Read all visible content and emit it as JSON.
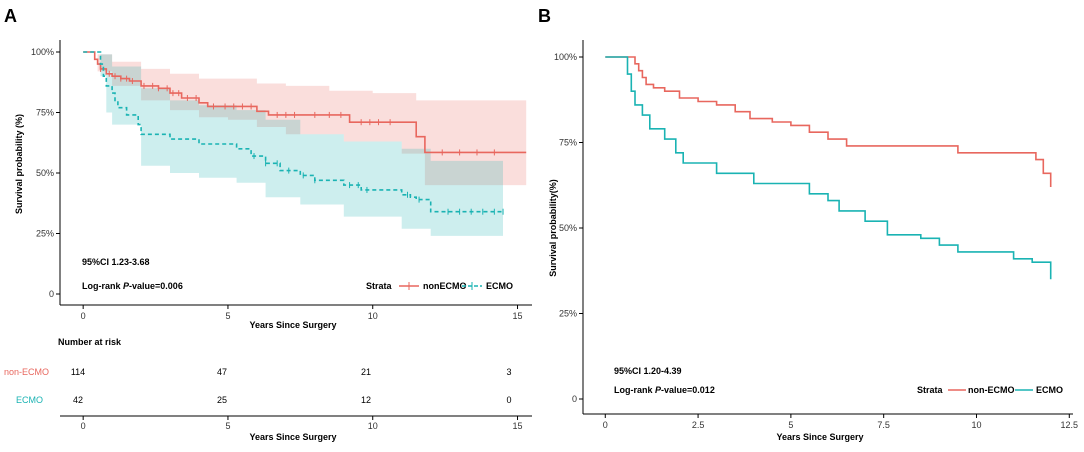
{
  "panels": {
    "a": {
      "letter": "A",
      "annotations": {
        "ci": "95%CI 1.23-3.68",
        "logrank_prefix": "Log-rank ",
        "logrank_p": "P",
        "logrank_suffix": "-value=0.006"
      },
      "legend": {
        "title": "Strata",
        "items": [
          "nonECMO",
          "ECMO"
        ]
      },
      "risk_table": {
        "title": "Number at risk",
        "xlabel": "Years Since Surgery",
        "times": [
          0,
          5,
          10,
          15
        ],
        "rows": [
          {
            "label": "non-ECMO",
            "counts": [
              "114",
              "47",
              "21",
              "3"
            ]
          },
          {
            "label": "ECMO",
            "counts": [
              "42",
              "25",
              "12",
              "0"
            ]
          }
        ]
      }
    },
    "b": {
      "letter": "B",
      "annotations": {
        "ci": "95%CI 1.20-4.39",
        "logrank_prefix": "Log-rank ",
        "logrank_p": "P",
        "logrank_suffix": "-value=0.012"
      },
      "legend": {
        "title": "Strata",
        "items": [
          "non-ECMO",
          "ECMO"
        ]
      }
    }
  },
  "colors": {
    "nonecmo": "#E8675E",
    "ecmo": "#1AB3B3"
  },
  "chart_data": [
    {
      "type": "line",
      "subtype": "kaplan-meier",
      "title": "",
      "xlabel": "Years Since Surgery",
      "ylabel": "Survival probability (%)",
      "xlim": [
        -0.8,
        15.5
      ],
      "ylim": [
        0,
        1
      ],
      "xticks": [
        0,
        5,
        10,
        15
      ],
      "yticks": [
        0,
        0.25,
        0.5,
        0.75,
        1.0
      ],
      "yticklabels": [
        "0",
        "25%",
        "50%",
        "75%",
        "100%"
      ],
      "series": [
        {
          "name": "nonECMO",
          "style": "solid",
          "steps": [
            [
              0,
              1.0
            ],
            [
              0.4,
              0.97
            ],
            [
              0.5,
              0.95
            ],
            [
              0.6,
              0.93
            ],
            [
              0.8,
              0.91
            ],
            [
              1.0,
              0.9
            ],
            [
              1.3,
              0.89
            ],
            [
              1.6,
              0.88
            ],
            [
              2.0,
              0.86
            ],
            [
              2.6,
              0.85
            ],
            [
              3.0,
              0.83
            ],
            [
              3.4,
              0.81
            ],
            [
              4.0,
              0.79
            ],
            [
              4.3,
              0.775
            ],
            [
              6.0,
              0.755
            ],
            [
              6.4,
              0.74
            ],
            [
              9.2,
              0.71
            ],
            [
              11.5,
              0.65
            ],
            [
              11.8,
              0.585
            ],
            [
              15.3,
              0.585
            ]
          ],
          "ci_upper": [
            [
              0,
              1.0
            ],
            [
              0.5,
              0.99
            ],
            [
              1.0,
              0.96
            ],
            [
              2.0,
              0.93
            ],
            [
              3.0,
              0.91
            ],
            [
              4.0,
              0.89
            ],
            [
              6.0,
              0.87
            ],
            [
              7.0,
              0.86
            ],
            [
              8.5,
              0.84
            ],
            [
              10.0,
              0.83
            ],
            [
              11.5,
              0.8
            ],
            [
              15.3,
              0.8
            ]
          ],
          "ci_lower": [
            [
              0,
              1.0
            ],
            [
              0.5,
              0.92
            ],
            [
              1.0,
              0.86
            ],
            [
              2.0,
              0.8
            ],
            [
              3.0,
              0.76
            ],
            [
              4.0,
              0.73
            ],
            [
              5.0,
              0.72
            ],
            [
              6.0,
              0.69
            ],
            [
              7.0,
              0.66
            ],
            [
              9.0,
              0.63
            ],
            [
              11.0,
              0.58
            ],
            [
              11.8,
              0.45
            ],
            [
              15.3,
              0.43
            ]
          ],
          "censor_times": [
            0.6,
            0.9,
            1.1,
            1.3,
            1.5,
            1.7,
            2.1,
            2.4,
            2.6,
            2.9,
            3.1,
            3.3,
            3.6,
            3.9,
            4.5,
            4.9,
            5.2,
            5.5,
            5.8,
            6.7,
            7.0,
            7.3,
            8.0,
            8.5,
            8.9,
            9.6,
            9.9,
            10.2,
            10.6,
            12.4,
            13.0,
            13.6,
            14.2
          ]
        },
        {
          "name": "ECMO",
          "style": "dashed",
          "steps": [
            [
              0,
              1.0
            ],
            [
              0.6,
              0.95
            ],
            [
              0.7,
              0.9
            ],
            [
              0.8,
              0.86
            ],
            [
              1.0,
              0.83
            ],
            [
              1.1,
              0.8
            ],
            [
              1.2,
              0.77
            ],
            [
              1.5,
              0.74
            ],
            [
              1.9,
              0.7
            ],
            [
              2.0,
              0.66
            ],
            [
              3.0,
              0.64
            ],
            [
              4.0,
              0.62
            ],
            [
              5.3,
              0.6
            ],
            [
              5.8,
              0.57
            ],
            [
              6.3,
              0.54
            ],
            [
              6.8,
              0.51
            ],
            [
              7.5,
              0.49
            ],
            [
              8.0,
              0.47
            ],
            [
              9.0,
              0.45
            ],
            [
              9.6,
              0.43
            ],
            [
              11.0,
              0.41
            ],
            [
              11.3,
              0.4
            ],
            [
              11.5,
              0.39
            ],
            [
              12.0,
              0.34
            ],
            [
              14.5,
              0.34
            ]
          ],
          "ci_upper": [
            [
              0,
              1.0
            ],
            [
              0.6,
              0.99
            ],
            [
              1.0,
              0.94
            ],
            [
              2.0,
              0.85
            ],
            [
              3.0,
              0.8
            ],
            [
              4.0,
              0.78
            ],
            [
              5.3,
              0.76
            ],
            [
              6.3,
              0.72
            ],
            [
              7.5,
              0.66
            ],
            [
              9.0,
              0.63
            ],
            [
              11.0,
              0.6
            ],
            [
              12.0,
              0.55
            ],
            [
              14.5,
              0.55
            ]
          ],
          "ci_lower": [
            [
              0,
              1.0
            ],
            [
              0.6,
              0.9
            ],
            [
              0.8,
              0.75
            ],
            [
              1.0,
              0.7
            ],
            [
              2.0,
              0.53
            ],
            [
              3.0,
              0.5
            ],
            [
              4.0,
              0.48
            ],
            [
              5.3,
              0.46
            ],
            [
              6.3,
              0.4
            ],
            [
              7.5,
              0.37
            ],
            [
              9.0,
              0.32
            ],
            [
              11.0,
              0.27
            ],
            [
              12.0,
              0.24
            ],
            [
              14.5,
              0.21
            ]
          ],
          "censor_times": [
            5.9,
            6.3,
            6.7,
            7.1,
            7.6,
            8.0,
            9.2,
            9.5,
            9.8,
            11.2,
            11.6,
            12.6,
            13.0,
            13.4,
            13.8,
            14.2,
            14.5
          ]
        }
      ]
    },
    {
      "type": "line",
      "subtype": "kaplan-meier",
      "title": "",
      "xlabel": "Years Since Surgery",
      "ylabel": "Survival probability(%)",
      "xlim": [
        -0.6,
        12.6
      ],
      "ylim": [
        0,
        1
      ],
      "xticks": [
        0,
        2.5,
        5,
        7.5,
        10,
        12.5
      ],
      "xticklabels": [
        "0",
        "2.5",
        "5",
        "7.5",
        "10",
        "12.5"
      ],
      "yticks": [
        0,
        0.25,
        0.5,
        0.75,
        1.0
      ],
      "yticklabels": [
        "0",
        "25%",
        "50%",
        "75%",
        "100%"
      ],
      "series": [
        {
          "name": "non-ECMO",
          "style": "solid",
          "steps": [
            [
              0,
              1.0
            ],
            [
              0.8,
              0.98
            ],
            [
              0.9,
              0.96
            ],
            [
              1.0,
              0.94
            ],
            [
              1.1,
              0.92
            ],
            [
              1.3,
              0.91
            ],
            [
              1.6,
              0.9
            ],
            [
              2.0,
              0.88
            ],
            [
              2.5,
              0.87
            ],
            [
              3.0,
              0.86
            ],
            [
              3.5,
              0.84
            ],
            [
              3.9,
              0.82
            ],
            [
              4.5,
              0.81
            ],
            [
              5.0,
              0.8
            ],
            [
              5.5,
              0.78
            ],
            [
              6.0,
              0.76
            ],
            [
              6.5,
              0.74
            ],
            [
              9.5,
              0.72
            ],
            [
              11.6,
              0.7
            ],
            [
              11.8,
              0.66
            ],
            [
              12.0,
              0.62
            ]
          ]
        },
        {
          "name": "ECMO",
          "style": "solid",
          "steps": [
            [
              0,
              1.0
            ],
            [
              0.6,
              0.95
            ],
            [
              0.7,
              0.9
            ],
            [
              0.8,
              0.86
            ],
            [
              1.0,
              0.83
            ],
            [
              1.2,
              0.79
            ],
            [
              1.6,
              0.76
            ],
            [
              1.9,
              0.72
            ],
            [
              2.1,
              0.69
            ],
            [
              3.0,
              0.66
            ],
            [
              4.0,
              0.63
            ],
            [
              5.5,
              0.6
            ],
            [
              6.0,
              0.58
            ],
            [
              6.3,
              0.55
            ],
            [
              7.0,
              0.52
            ],
            [
              7.6,
              0.48
            ],
            [
              8.5,
              0.47
            ],
            [
              9.0,
              0.45
            ],
            [
              9.5,
              0.43
            ],
            [
              11.0,
              0.41
            ],
            [
              11.5,
              0.4
            ],
            [
              12.0,
              0.35
            ]
          ]
        }
      ]
    }
  ]
}
